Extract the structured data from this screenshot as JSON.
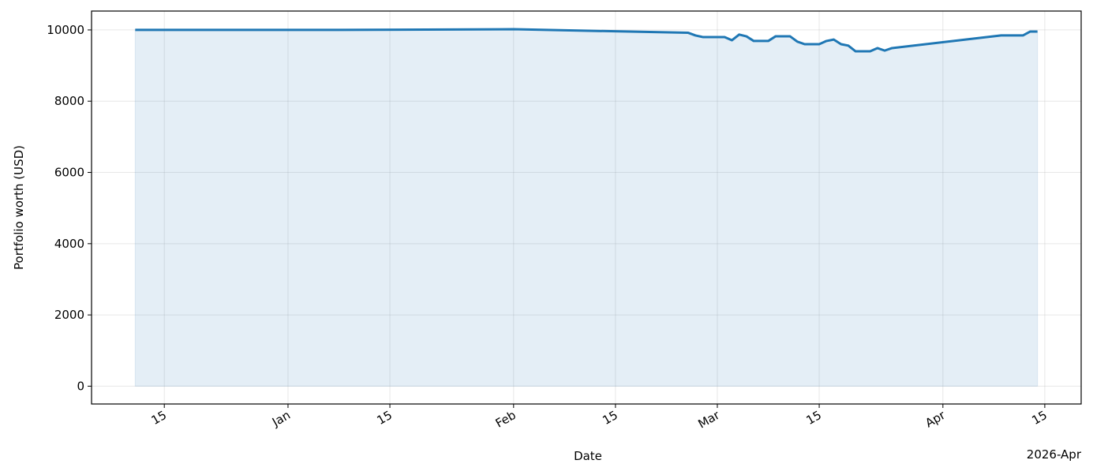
{
  "chart_data": {
    "type": "line",
    "x_label": "Date",
    "y_label": "Portfolio worth (USD)",
    "x_offset_label": "2026-Apr",
    "x": [
      "2025-12-11",
      "2026-01-08",
      "2026-02-01",
      "2026-02-25",
      "2026-02-26",
      "2026-02-27",
      "2026-03-02",
      "2026-03-03",
      "2026-03-04",
      "2026-03-05",
      "2026-03-06",
      "2026-03-08",
      "2026-03-09",
      "2026-03-11",
      "2026-03-12",
      "2026-03-13",
      "2026-03-15",
      "2026-03-16",
      "2026-03-17",
      "2026-03-18",
      "2026-03-19",
      "2026-03-20",
      "2026-03-22",
      "2026-03-23",
      "2026-03-24",
      "2026-03-25",
      "2026-04-09",
      "2026-04-12",
      "2026-04-13",
      "2026-04-14"
    ],
    "series": [
      {
        "color": "#1f77b4",
        "fill": true,
        "values": [
          10000,
          10000,
          10020,
          9920,
          9845,
          9800,
          9800,
          9710,
          9870,
          9820,
          9690,
          9690,
          9820,
          9820,
          9670,
          9600,
          9600,
          9690,
          9730,
          9600,
          9560,
          9400,
          9400,
          9490,
          9420,
          9490,
          9845,
          9845,
          9955,
          9955
        ]
      }
    ],
    "xlim": [
      "2025-12-05",
      "2026-04-20"
    ],
    "xticks": [
      {
        "value": "2025-12-15",
        "label": "15"
      },
      {
        "value": "2026-01-01",
        "label": "Jan"
      },
      {
        "value": "2026-01-15",
        "label": "15"
      },
      {
        "value": "2026-02-01",
        "label": "Feb"
      },
      {
        "value": "2026-02-15",
        "label": "15"
      },
      {
        "value": "2026-03-01",
        "label": "Mar"
      },
      {
        "value": "2026-03-15",
        "label": "15"
      },
      {
        "value": "2026-04-01",
        "label": "Apr"
      },
      {
        "value": "2026-04-15",
        "label": "15"
      }
    ],
    "ylim": [
      -500,
      10530
    ],
    "yticks": [
      0,
      2000,
      4000,
      6000,
      8000,
      10000
    ],
    "grid": true
  }
}
